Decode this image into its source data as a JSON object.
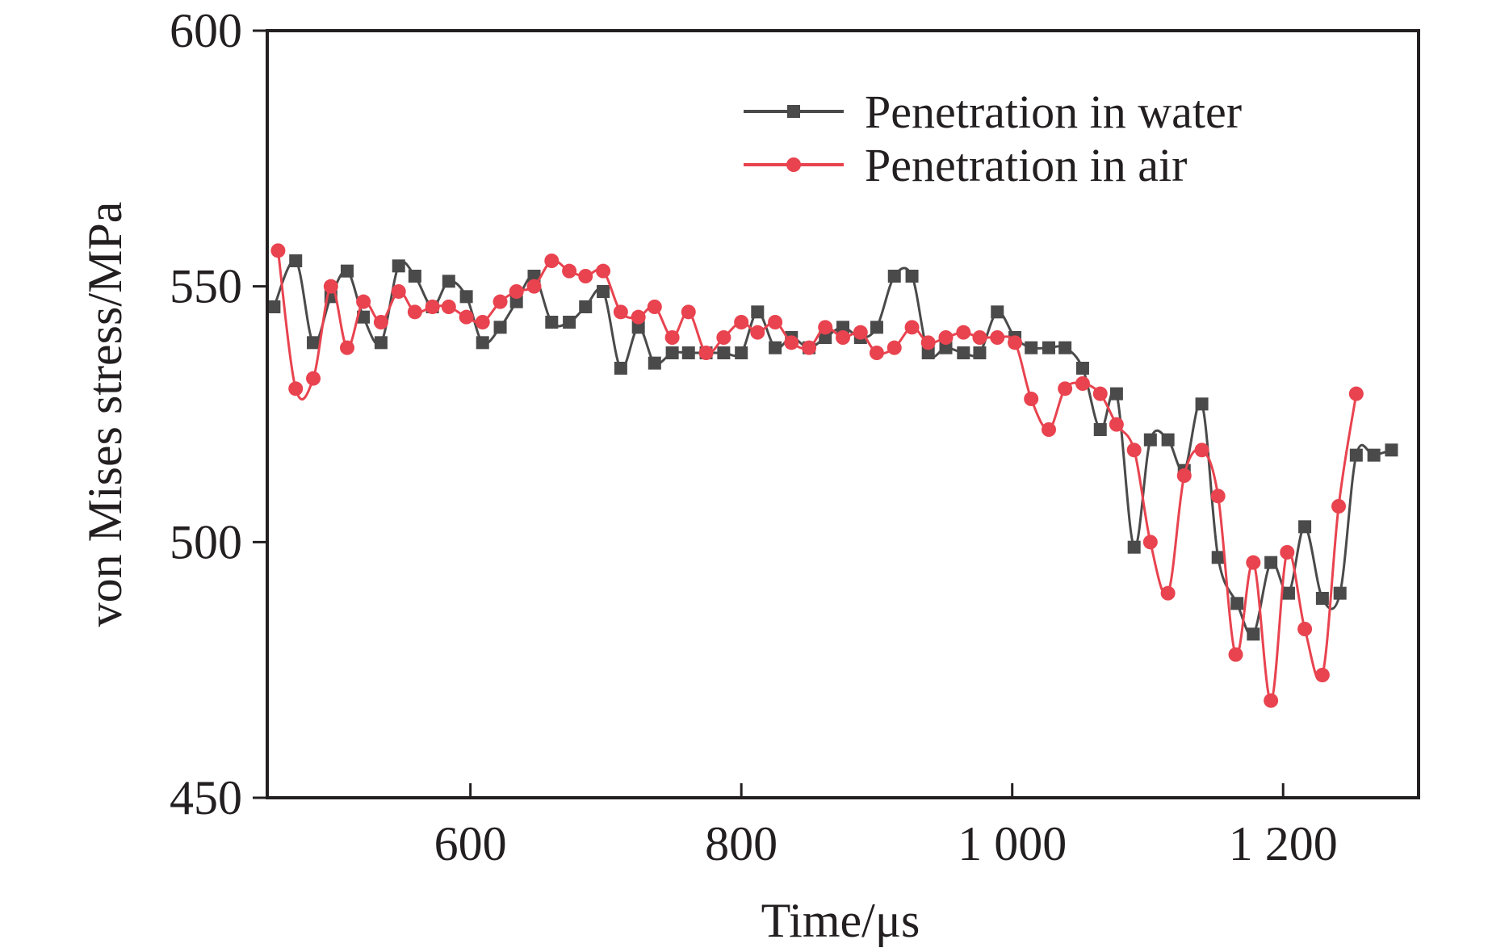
{
  "chart_data": {
    "type": "line",
    "title": "",
    "xlabel": "Time/μs",
    "ylabel": "von Mises stress/MPa",
    "xlim": [
      450,
      1300
    ],
    "ylim": [
      450,
      600
    ],
    "xticks": [
      600,
      800,
      1000,
      1200
    ],
    "xtick_labels": [
      "600",
      "800",
      "1 000",
      "1 200"
    ],
    "yticks": [
      450,
      500,
      550,
      600
    ],
    "ytick_labels": [
      "450",
      "500",
      "550",
      "600"
    ],
    "grid": false,
    "legend_position": "top-right",
    "series": [
      {
        "name": "Penetration in water",
        "color": "#4a4a4a",
        "marker": "square",
        "x": [
          455,
          471,
          484,
          497,
          509,
          521,
          534,
          547,
          559,
          572,
          584,
          597,
          609,
          622,
          634,
          647,
          660,
          673,
          685,
          698,
          711,
          724,
          736,
          749,
          761,
          774,
          787,
          800,
          812,
          825,
          837,
          850,
          862,
          875,
          888,
          900,
          913,
          926,
          938,
          951,
          964,
          976,
          989,
          1002,
          1014,
          1027,
          1039,
          1052,
          1065,
          1077,
          1090,
          1102,
          1115,
          1127,
          1140,
          1152,
          1166,
          1178,
          1191,
          1204,
          1216,
          1229,
          1242,
          1254,
          1267,
          1280
        ],
        "y": [
          546,
          555,
          539,
          548,
          553,
          544,
          539,
          554,
          552,
          546,
          551,
          548,
          539,
          542,
          547,
          552,
          543,
          543,
          546,
          549,
          534,
          542,
          535,
          537,
          537,
          537,
          537,
          537,
          545,
          538,
          540,
          538,
          540,
          542,
          540,
          542,
          552,
          552,
          537,
          538,
          537,
          537,
          545,
          540,
          538,
          538,
          538,
          534,
          522,
          529,
          499,
          520,
          520,
          514,
          527,
          497,
          488,
          482,
          496,
          490,
          503,
          489,
          490,
          517,
          517,
          518
        ]
      },
      {
        "name": "Penetration in air",
        "color": "#e8434f",
        "marker": "circle",
        "x": [
          458,
          471,
          484,
          497,
          509,
          521,
          534,
          547,
          559,
          572,
          584,
          597,
          609,
          622,
          634,
          647,
          660,
          673,
          685,
          698,
          711,
          724,
          736,
          749,
          761,
          774,
          787,
          800,
          812,
          825,
          837,
          850,
          862,
          875,
          888,
          900,
          913,
          926,
          938,
          951,
          964,
          976,
          989,
          1002,
          1014,
          1027,
          1039,
          1052,
          1065,
          1077,
          1090,
          1102,
          1115,
          1127,
          1140,
          1152,
          1165,
          1178,
          1191,
          1203,
          1216,
          1229,
          1241,
          1254
        ],
        "y": [
          557,
          530,
          532,
          550,
          538,
          547,
          543,
          549,
          545,
          546,
          546,
          544,
          543,
          547,
          549,
          550,
          555,
          553,
          552,
          553,
          545,
          544,
          546,
          540,
          545,
          537,
          540,
          543,
          541,
          543,
          539,
          538,
          542,
          540,
          541,
          537,
          538,
          542,
          539,
          540,
          541,
          540,
          540,
          539,
          528,
          522,
          530,
          531,
          529,
          523,
          518,
          500,
          490,
          513,
          518,
          509,
          478,
          496,
          469,
          498,
          483,
          474,
          507,
          529
        ]
      }
    ]
  }
}
